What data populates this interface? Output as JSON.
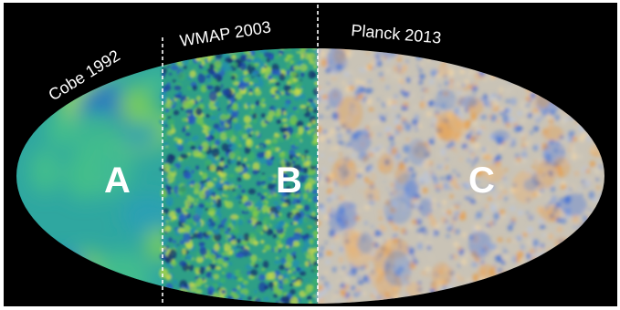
{
  "labels": {
    "cobe": "Cobe 1992",
    "wmap": "WMAP 2003",
    "planck": "Planck 2013"
  },
  "panels": {
    "a": "A",
    "b": "B",
    "c": "C"
  },
  "colors": {
    "background": "#000000",
    "cobe_base": "#2fa7a0",
    "wmap_base": "#2e9f86",
    "planck_base": "#c9c3b6",
    "cold_spot": "#2f62d4",
    "hot_spot": "#e89a3d",
    "separator": "#ffffff"
  }
}
